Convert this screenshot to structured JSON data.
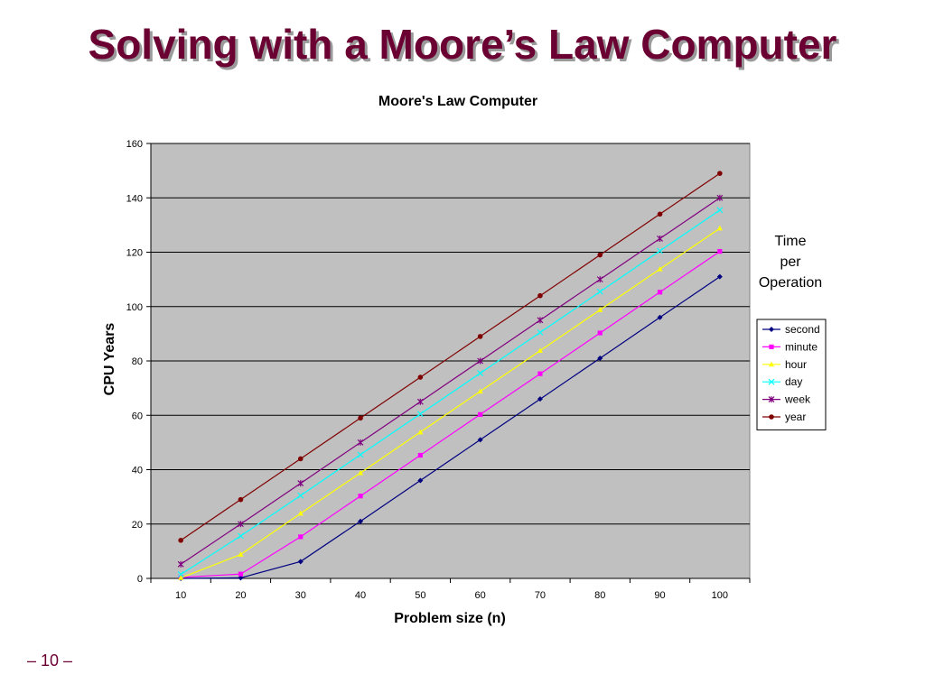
{
  "slide": {
    "title": "Solving with a Moore’s Law Computer",
    "page_number": "– 10 –"
  },
  "chart_data": {
    "type": "line",
    "title": "Moore's Law Computer",
    "xlabel": "Problem size (n)",
    "ylabel": "CPU Years",
    "categories": [
      10,
      20,
      30,
      40,
      50,
      60,
      70,
      80,
      90,
      100
    ],
    "ylim": [
      0,
      160
    ],
    "yticks": [
      0,
      20,
      40,
      60,
      80,
      100,
      120,
      140,
      160
    ],
    "grid": true,
    "plot_background": "#c0c0c0",
    "legend": {
      "title_lines": [
        "Time",
        "per",
        "Operation"
      ],
      "placement": "right"
    },
    "series": [
      {
        "name": "second",
        "color": "#000080",
        "marker": "diamond",
        "values": [
          0,
          0.2,
          6.2,
          21,
          36,
          51,
          66,
          81,
          96,
          111
        ]
      },
      {
        "name": "minute",
        "color": "#ff00ff",
        "marker": "square",
        "values": [
          0.4,
          1.6,
          15.3,
          30.3,
          45.3,
          60.3,
          75.3,
          90.3,
          105.3,
          120.3
        ]
      },
      {
        "name": "hour",
        "color": "#ffff00",
        "marker": "triangle",
        "values": [
          0.2,
          8.8,
          23.9,
          38.8,
          53.8,
          68.8,
          83.8,
          98.8,
          113.8,
          128.8
        ]
      },
      {
        "name": "day",
        "color": "#00ffff",
        "marker": "x",
        "values": [
          1.5,
          15.6,
          30.5,
          45.5,
          60.5,
          75.5,
          90.5,
          105.5,
          120.5,
          135.5
        ]
      },
      {
        "name": "week",
        "color": "#800080",
        "marker": "star",
        "values": [
          5.2,
          20,
          35,
          50,
          65,
          80,
          95,
          110,
          125,
          140
        ]
      },
      {
        "name": "year",
        "color": "#800000",
        "marker": "circle",
        "values": [
          14,
          29,
          44,
          59,
          74,
          89,
          104,
          119,
          134,
          149
        ]
      }
    ]
  }
}
